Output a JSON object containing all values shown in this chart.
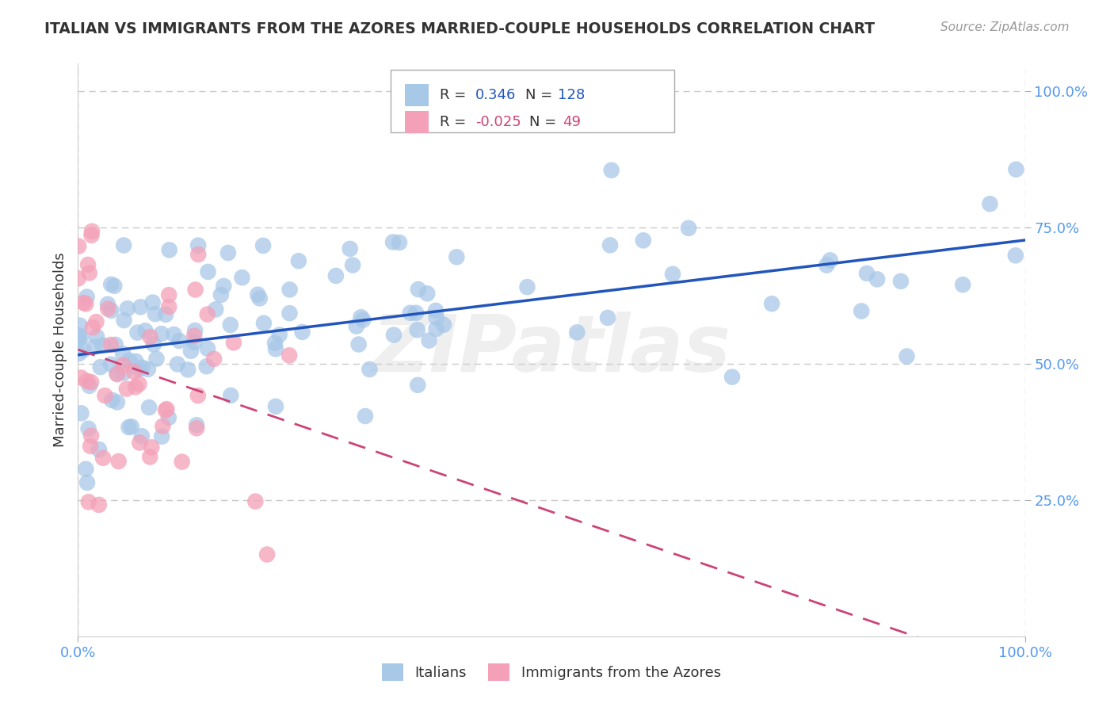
{
  "title": "ITALIAN VS IMMIGRANTS FROM THE AZORES MARRIED-COUPLE HOUSEHOLDS CORRELATION CHART",
  "source": "Source: ZipAtlas.com",
  "ylabel": "Married-couple Households",
  "ytick_labels": [
    "25.0%",
    "50.0%",
    "75.0%",
    "100.0%"
  ],
  "ytick_values": [
    0.25,
    0.5,
    0.75,
    1.0
  ],
  "xtick_left": "0.0%",
  "xtick_right": "100.0%",
  "legend_italian_r": "0.346",
  "legend_italian_n": "128",
  "legend_azores_r": "-0.025",
  "legend_azores_n": "49",
  "italian_color": "#a8c8e8",
  "azores_color": "#f4a0b8",
  "italian_line_color": "#2255bb",
  "azores_line_color": "#cc4477",
  "background_color": "#ffffff",
  "grid_color": "#c8c8c8",
  "watermark": "ZIPatlas",
  "title_color": "#333333",
  "source_color": "#999999",
  "axis_label_color": "#333333",
  "tick_color": "#5599ee",
  "legend_text_color": "#333333",
  "legend_value_color_it": "#2255bb",
  "legend_value_color_az": "#cc4477",
  "xlim": [
    0.0,
    1.0
  ],
  "ylim": [
    0.0,
    1.05
  ],
  "figsize": [
    14.06,
    8.92
  ],
  "dpi": 100
}
